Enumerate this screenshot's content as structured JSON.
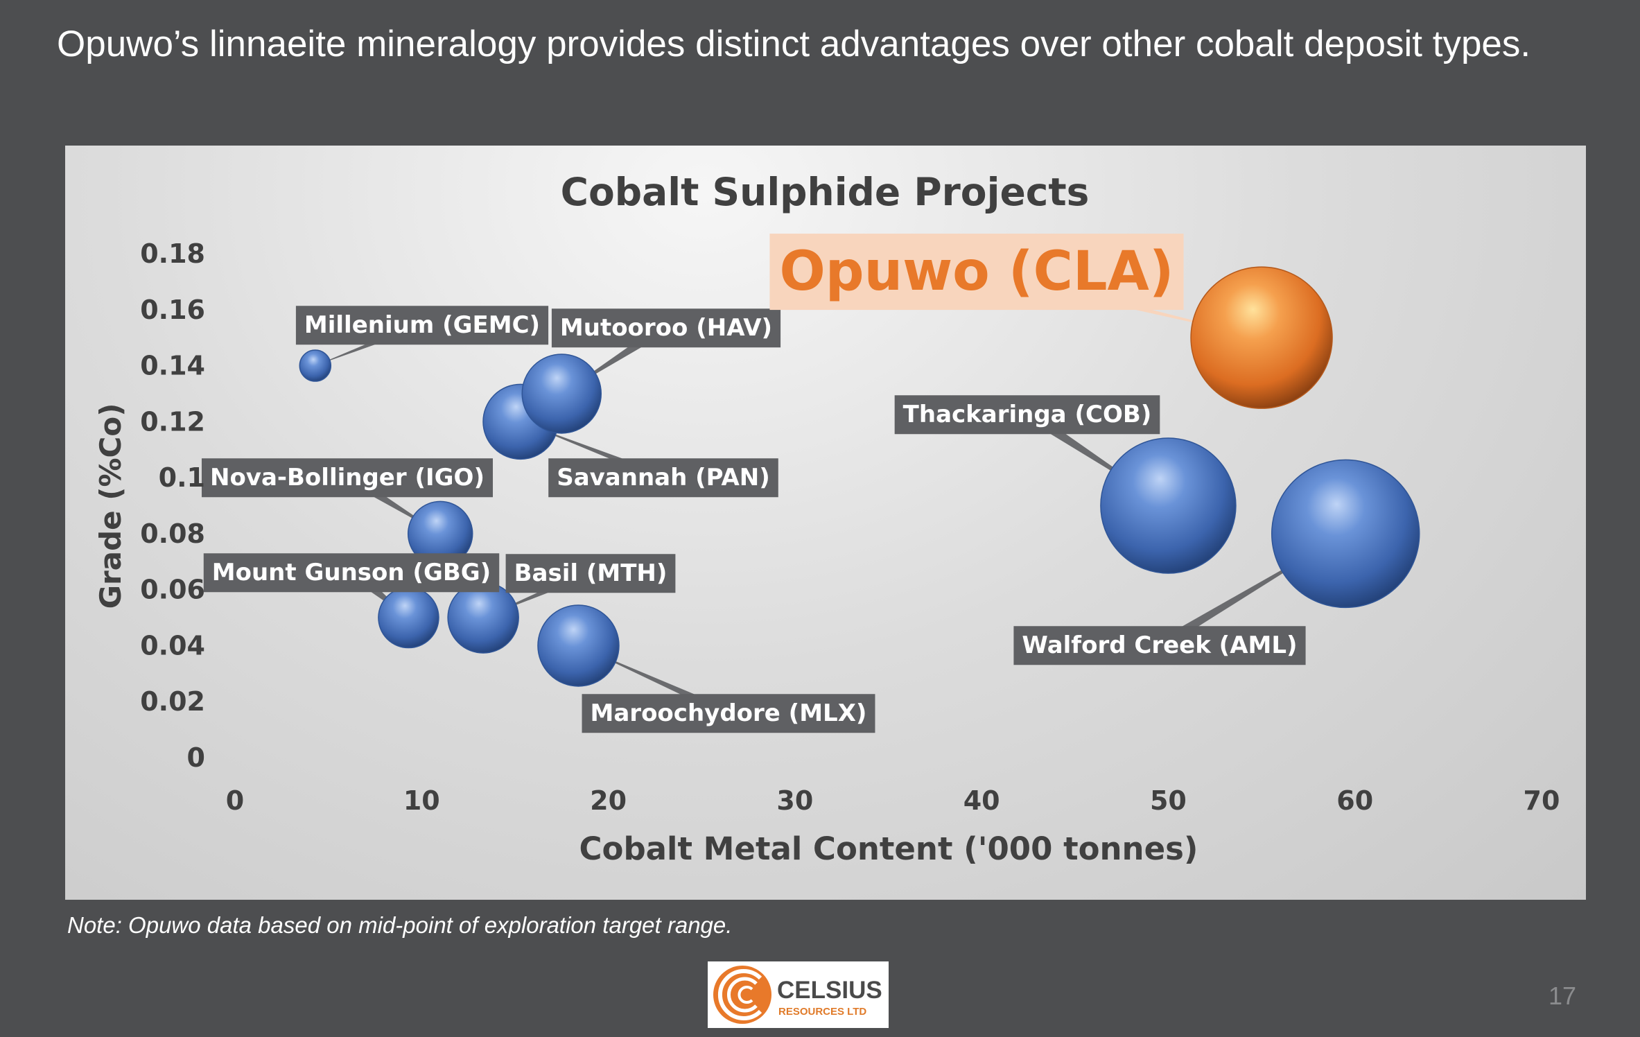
{
  "slide": {
    "title": "Opuwo’s linnaeite mineralogy provides distinct advantages over other cobalt deposit types.",
    "note": "Note: Opuwo data based on mid-point of exploration target range.",
    "page_number": "17"
  },
  "logo": {
    "name": "CELSIUS",
    "subtitle": "RESOURCES LTD",
    "colors": {
      "mark": "#e8792a",
      "text": "#4a4a4a"
    }
  },
  "chart_data": {
    "type": "scatter",
    "variant": "bubble",
    "title": "Cobalt Sulphide Projects",
    "xlabel": "Cobalt Metal Content ('000 tonnes)",
    "ylabel": "Grade (%Co)",
    "xlim": [
      0,
      70
    ],
    "ylim": [
      0,
      0.18
    ],
    "x_ticks": [
      "0",
      "10",
      "20",
      "30",
      "40",
      "50",
      "60",
      "70"
    ],
    "y_ticks": [
      "0",
      "0.02",
      "0.04",
      "0.06",
      "0.08",
      "0.1",
      "0.12",
      "0.14",
      "0.16",
      "0.18"
    ],
    "grid": false,
    "colors": {
      "bubble": "#4472c4",
      "highlight": "#ed7d31",
      "label_box": "#5f6063",
      "highlight_label_box": "#f8d5bd"
    },
    "points": [
      {
        "label": "Millenium (GEMC)",
        "x": 4.3,
        "y": 0.14,
        "size": 1.5,
        "highlight": false
      },
      {
        "label": "Savannah (PAN)",
        "x": 15.3,
        "y": 0.12,
        "size": 3.6,
        "highlight": false
      },
      {
        "label": "Mutooroo (HAV)",
        "x": 17.5,
        "y": 0.13,
        "size": 3.8,
        "highlight": false
      },
      {
        "label": "Nova-Bollinger (IGO)",
        "x": 11.0,
        "y": 0.08,
        "size": 3.1,
        "highlight": false
      },
      {
        "label": "Mount Gunson (GBG)",
        "x": 9.3,
        "y": 0.05,
        "size": 2.9,
        "highlight": false
      },
      {
        "label": "Basil (MTH)",
        "x": 13.3,
        "y": 0.05,
        "size": 3.4,
        "highlight": false
      },
      {
        "label": "Maroochydore (MLX)",
        "x": 18.4,
        "y": 0.04,
        "size": 3.9,
        "highlight": false
      },
      {
        "label": "Thackaringa (COB)",
        "x": 50.0,
        "y": 0.09,
        "size": 6.5,
        "highlight": false
      },
      {
        "label": "Walford Creek (AML)",
        "x": 59.5,
        "y": 0.08,
        "size": 7.1,
        "highlight": false
      },
      {
        "label": "Opuwo (CLA)",
        "x": 55.0,
        "y": 0.15,
        "size": 6.8,
        "highlight": true
      }
    ]
  }
}
